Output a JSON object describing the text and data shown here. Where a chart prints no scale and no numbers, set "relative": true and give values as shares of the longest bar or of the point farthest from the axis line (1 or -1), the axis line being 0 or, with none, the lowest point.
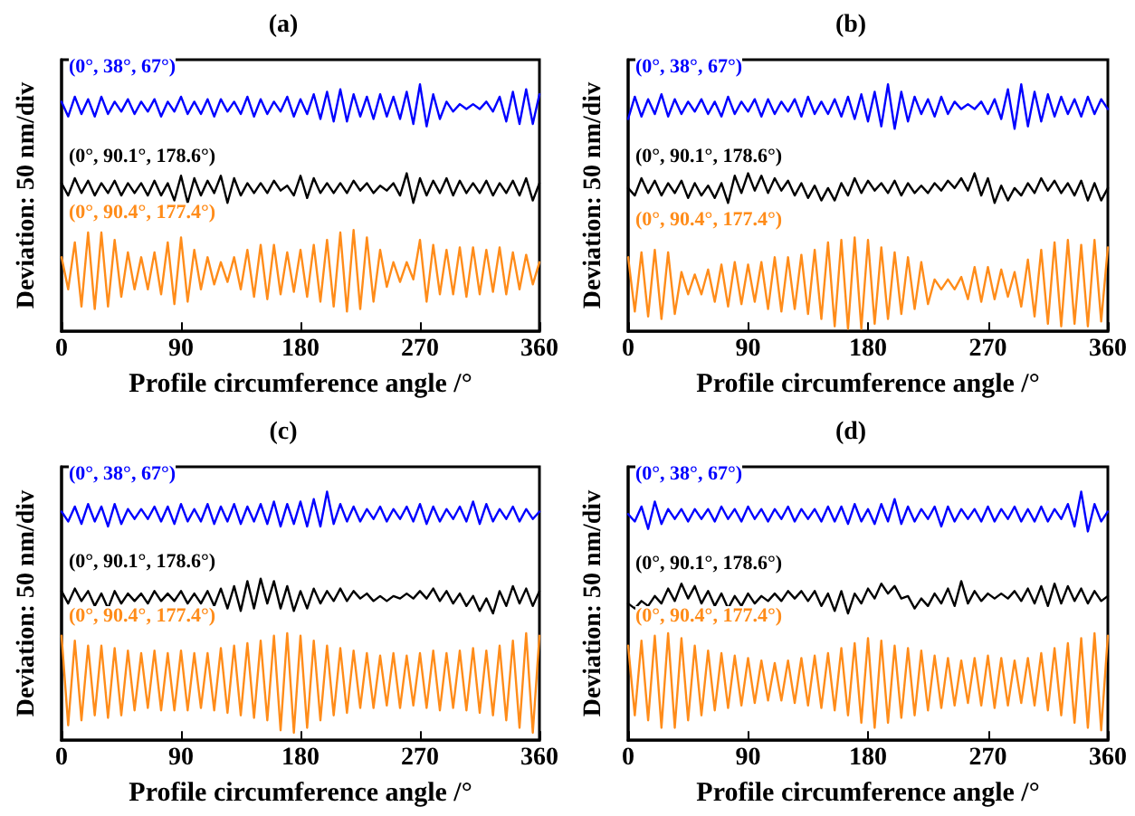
{
  "chart_data": [
    {
      "type": "line",
      "title": "(a)",
      "xlabel": "Profile circumference angle /°",
      "ylabel": "Deviation: 50 nm/div",
      "relative": true,
      "tick_labels": "x",
      "grid": false,
      "marker": "none",
      "line_style": "solid",
      "xlim": [
        0,
        360
      ],
      "xticks": [
        0,
        90,
        180,
        270,
        360
      ],
      "x": [
        0,
        5,
        10,
        15,
        20,
        25,
        30,
        35,
        40,
        45,
        50,
        55,
        60,
        65,
        70,
        75,
        80,
        85,
        90,
        95,
        100,
        105,
        110,
        115,
        120,
        125,
        130,
        135,
        140,
        145,
        150,
        155,
        160,
        165,
        170,
        175,
        180,
        185,
        190,
        195,
        200,
        205,
        210,
        215,
        220,
        225,
        230,
        235,
        240,
        245,
        250,
        255,
        260,
        265,
        270,
        275,
        280,
        285,
        290,
        295,
        300,
        305,
        310,
        315,
        320,
        325,
        330,
        335,
        340,
        345,
        350,
        355,
        360
      ],
      "series": [
        {
          "name": "(0°, 38°, 67°)",
          "color": "#0000ff",
          "values": [
            0.93,
            0.87,
            0.95,
            0.88,
            0.94,
            0.87,
            0.95,
            0.88,
            0.93,
            0.89,
            0.94,
            0.88,
            0.93,
            0.89,
            0.94,
            0.87,
            0.93,
            0.89,
            0.95,
            0.88,
            0.93,
            0.88,
            0.94,
            0.87,
            0.94,
            0.89,
            0.93,
            0.88,
            0.95,
            0.87,
            0.94,
            0.88,
            0.93,
            0.89,
            0.95,
            0.87,
            0.94,
            0.88,
            0.96,
            0.86,
            0.97,
            0.85,
            0.98,
            0.85,
            0.96,
            0.87,
            0.95,
            0.86,
            0.96,
            0.87,
            0.95,
            0.86,
            0.97,
            0.84,
            1.0,
            0.83,
            0.96,
            0.86,
            0.93,
            0.89,
            0.92,
            0.9,
            0.92,
            0.9,
            0.93,
            0.89,
            0.95,
            0.85,
            0.97,
            0.84,
            0.98,
            0.84,
            0.96
          ]
        },
        {
          "name": "(0°, 90.1°, 178.6°)",
          "color": "#000000",
          "values": [
            0.6,
            0.55,
            0.62,
            0.56,
            0.61,
            0.55,
            0.6,
            0.56,
            0.61,
            0.55,
            0.6,
            0.56,
            0.6,
            0.55,
            0.61,
            0.55,
            0.6,
            0.53,
            0.63,
            0.52,
            0.62,
            0.55,
            0.61,
            0.56,
            0.63,
            0.52,
            0.62,
            0.55,
            0.6,
            0.56,
            0.6,
            0.56,
            0.61,
            0.57,
            0.59,
            0.55,
            0.63,
            0.54,
            0.62,
            0.56,
            0.6,
            0.56,
            0.6,
            0.56,
            0.61,
            0.57,
            0.6,
            0.56,
            0.59,
            0.57,
            0.6,
            0.55,
            0.64,
            0.52,
            0.62,
            0.55,
            0.61,
            0.56,
            0.62,
            0.55,
            0.61,
            0.56,
            0.6,
            0.56,
            0.61,
            0.55,
            0.6,
            0.56,
            0.61,
            0.55,
            0.62,
            0.53,
            0.6
          ]
        },
        {
          "name": "(0°, 90.4°, 177.4°)",
          "color": "#ff8c1a",
          "values": [
            0.3,
            0.17,
            0.36,
            0.1,
            0.4,
            0.09,
            0.4,
            0.1,
            0.37,
            0.14,
            0.32,
            0.17,
            0.3,
            0.17,
            0.32,
            0.15,
            0.36,
            0.11,
            0.38,
            0.12,
            0.33,
            0.17,
            0.3,
            0.19,
            0.28,
            0.2,
            0.3,
            0.17,
            0.33,
            0.14,
            0.35,
            0.13,
            0.35,
            0.15,
            0.32,
            0.16,
            0.33,
            0.14,
            0.35,
            0.12,
            0.37,
            0.1,
            0.4,
            0.08,
            0.41,
            0.09,
            0.38,
            0.12,
            0.33,
            0.18,
            0.28,
            0.2,
            0.28,
            0.21,
            0.37,
            0.12,
            0.35,
            0.15,
            0.33,
            0.15,
            0.34,
            0.14,
            0.34,
            0.15,
            0.33,
            0.16,
            0.34,
            0.15,
            0.32,
            0.17,
            0.31,
            0.19,
            0.28
          ]
        }
      ]
    },
    {
      "type": "line",
      "title": "(b)",
      "xlabel": "Profile circumference angle /°",
      "ylabel": "Deviation: 50 nm/div",
      "relative": true,
      "tick_labels": "x",
      "grid": false,
      "marker": "none",
      "line_style": "solid",
      "xlim": [
        0,
        360
      ],
      "xticks": [
        0,
        90,
        180,
        270,
        360
      ],
      "x": [
        0,
        5,
        10,
        15,
        20,
        25,
        30,
        35,
        40,
        45,
        50,
        55,
        60,
        65,
        70,
        75,
        80,
        85,
        90,
        95,
        100,
        105,
        110,
        115,
        120,
        125,
        130,
        135,
        140,
        145,
        150,
        155,
        160,
        165,
        170,
        175,
        180,
        185,
        190,
        195,
        200,
        205,
        210,
        215,
        220,
        225,
        230,
        235,
        240,
        245,
        250,
        255,
        260,
        265,
        270,
        275,
        280,
        285,
        290,
        295,
        300,
        305,
        310,
        315,
        320,
        325,
        330,
        335,
        340,
        345,
        350,
        355,
        360
      ],
      "series": [
        {
          "name": "(0°, 38°, 67°)",
          "color": "#0000ff",
          "values": [
            0.86,
            0.95,
            0.87,
            0.94,
            0.88,
            0.96,
            0.87,
            0.94,
            0.88,
            0.93,
            0.89,
            0.94,
            0.88,
            0.93,
            0.87,
            0.95,
            0.88,
            0.93,
            0.89,
            0.94,
            0.87,
            0.94,
            0.88,
            0.93,
            0.89,
            0.94,
            0.87,
            0.95,
            0.88,
            0.93,
            0.88,
            0.94,
            0.87,
            0.95,
            0.86,
            0.96,
            0.85,
            0.97,
            0.83,
            1.0,
            0.82,
            0.97,
            0.85,
            0.95,
            0.88,
            0.94,
            0.87,
            0.95,
            0.88,
            0.93,
            0.9,
            0.92,
            0.9,
            0.93,
            0.88,
            0.94,
            0.86,
            0.98,
            0.82,
            1.0,
            0.83,
            0.97,
            0.85,
            0.96,
            0.87,
            0.95,
            0.88,
            0.94,
            0.87,
            0.95,
            0.88,
            0.94,
            0.9
          ]
        },
        {
          "name": "(0°, 90.1°, 178.6°)",
          "color": "#000000",
          "values": [
            0.58,
            0.55,
            0.62,
            0.56,
            0.61,
            0.55,
            0.6,
            0.56,
            0.61,
            0.54,
            0.6,
            0.55,
            0.59,
            0.54,
            0.6,
            0.52,
            0.63,
            0.56,
            0.64,
            0.57,
            0.63,
            0.56,
            0.62,
            0.57,
            0.61,
            0.55,
            0.6,
            0.54,
            0.59,
            0.53,
            0.58,
            0.53,
            0.6,
            0.55,
            0.62,
            0.56,
            0.61,
            0.57,
            0.6,
            0.56,
            0.61,
            0.55,
            0.6,
            0.56,
            0.59,
            0.56,
            0.6,
            0.57,
            0.61,
            0.58,
            0.62,
            0.57,
            0.64,
            0.55,
            0.62,
            0.52,
            0.59,
            0.53,
            0.58,
            0.55,
            0.6,
            0.56,
            0.62,
            0.57,
            0.61,
            0.56,
            0.6,
            0.55,
            0.61,
            0.53,
            0.6,
            0.53,
            0.58
          ]
        },
        {
          "name": "(0°, 90.4°, 177.4°)",
          "color": "#ff8c1a",
          "values": [
            0.3,
            0.08,
            0.32,
            0.06,
            0.33,
            0.05,
            0.32,
            0.07,
            0.24,
            0.15,
            0.23,
            0.15,
            0.25,
            0.12,
            0.27,
            0.1,
            0.28,
            0.11,
            0.27,
            0.12,
            0.28,
            0.09,
            0.3,
            0.08,
            0.3,
            0.09,
            0.31,
            0.07,
            0.33,
            0.05,
            0.36,
            0.02,
            0.37,
            0.01,
            0.38,
            0.01,
            0.37,
            0.03,
            0.34,
            0.05,
            0.32,
            0.07,
            0.3,
            0.09,
            0.28,
            0.11,
            0.21,
            0.17,
            0.21,
            0.17,
            0.22,
            0.13,
            0.26,
            0.12,
            0.26,
            0.13,
            0.25,
            0.14,
            0.24,
            0.1,
            0.29,
            0.06,
            0.33,
            0.03,
            0.36,
            0.02,
            0.37,
            0.03,
            0.35,
            0.02,
            0.37,
            0.04,
            0.34
          ]
        }
      ]
    },
    {
      "type": "line",
      "title": "(c)",
      "xlabel": "Profile circumference angle /°",
      "ylabel": "Deviation: 50 nm/div",
      "relative": true,
      "tick_labels": "x",
      "grid": false,
      "marker": "none",
      "line_style": "solid",
      "xlim": [
        0,
        360
      ],
      "xticks": [
        0,
        90,
        180,
        270,
        360
      ],
      "x": [
        0,
        5,
        10,
        15,
        20,
        25,
        30,
        35,
        40,
        45,
        50,
        55,
        60,
        65,
        70,
        75,
        80,
        85,
        90,
        95,
        100,
        105,
        110,
        115,
        120,
        125,
        130,
        135,
        140,
        145,
        150,
        155,
        160,
        165,
        170,
        175,
        180,
        185,
        190,
        195,
        200,
        205,
        210,
        215,
        220,
        225,
        230,
        235,
        240,
        245,
        250,
        255,
        260,
        265,
        270,
        275,
        280,
        285,
        290,
        295,
        300,
        305,
        310,
        315,
        320,
        325,
        330,
        335,
        340,
        345,
        350,
        355,
        360
      ],
      "series": [
        {
          "name": "(0°, 38°, 67°)",
          "color": "#0000ff",
          "values": [
            0.92,
            0.88,
            0.94,
            0.87,
            0.95,
            0.88,
            0.94,
            0.86,
            0.95,
            0.87,
            0.93,
            0.89,
            0.93,
            0.89,
            0.94,
            0.88,
            0.94,
            0.87,
            0.95,
            0.88,
            0.93,
            0.88,
            0.95,
            0.87,
            0.94,
            0.88,
            0.95,
            0.87,
            0.94,
            0.88,
            0.95,
            0.87,
            0.96,
            0.86,
            0.95,
            0.87,
            0.96,
            0.86,
            0.97,
            0.86,
            1.0,
            0.87,
            0.95,
            0.88,
            0.94,
            0.88,
            0.93,
            0.89,
            0.94,
            0.88,
            0.93,
            0.89,
            0.94,
            0.88,
            0.95,
            0.87,
            0.94,
            0.88,
            0.93,
            0.89,
            0.94,
            0.88,
            0.96,
            0.87,
            0.95,
            0.88,
            0.93,
            0.89,
            0.94,
            0.88,
            0.93,
            0.89,
            0.92
          ]
        },
        {
          "name": "(0°, 90.1°, 178.6°)",
          "color": "#000000",
          "values": [
            0.6,
            0.55,
            0.61,
            0.56,
            0.6,
            0.54,
            0.59,
            0.53,
            0.6,
            0.55,
            0.59,
            0.56,
            0.59,
            0.55,
            0.6,
            0.56,
            0.59,
            0.56,
            0.6,
            0.55,
            0.59,
            0.55,
            0.6,
            0.54,
            0.61,
            0.53,
            0.62,
            0.52,
            0.64,
            0.53,
            0.65,
            0.55,
            0.64,
            0.53,
            0.62,
            0.52,
            0.6,
            0.53,
            0.61,
            0.55,
            0.6,
            0.56,
            0.61,
            0.56,
            0.6,
            0.57,
            0.59,
            0.56,
            0.58,
            0.56,
            0.58,
            0.57,
            0.59,
            0.57,
            0.6,
            0.57,
            0.61,
            0.56,
            0.6,
            0.55,
            0.59,
            0.54,
            0.58,
            0.52,
            0.57,
            0.51,
            0.6,
            0.54,
            0.62,
            0.55,
            0.61,
            0.54,
            0.6
          ]
        },
        {
          "name": "(0°, 90.4°, 177.4°)",
          "color": "#ff8c1a",
          "values": [
            0.42,
            0.06,
            0.4,
            0.08,
            0.38,
            0.1,
            0.38,
            0.09,
            0.37,
            0.1,
            0.36,
            0.12,
            0.35,
            0.13,
            0.36,
            0.12,
            0.35,
            0.12,
            0.36,
            0.12,
            0.35,
            0.13,
            0.35,
            0.12,
            0.37,
            0.11,
            0.38,
            0.1,
            0.39,
            0.09,
            0.4,
            0.08,
            0.42,
            0.04,
            0.43,
            0.03,
            0.42,
            0.05,
            0.4,
            0.08,
            0.38,
            0.1,
            0.37,
            0.11,
            0.36,
            0.13,
            0.35,
            0.13,
            0.34,
            0.14,
            0.35,
            0.13,
            0.34,
            0.14,
            0.35,
            0.13,
            0.36,
            0.12,
            0.35,
            0.13,
            0.36,
            0.12,
            0.37,
            0.11,
            0.36,
            0.1,
            0.38,
            0.08,
            0.4,
            0.05,
            0.43,
            0.03,
            0.42
          ]
        }
      ]
    },
    {
      "type": "line",
      "title": "(d)",
      "xlabel": "Profile circumference angle /°",
      "ylabel": "Deviation: 50 nm/div",
      "relative": true,
      "tick_labels": "x",
      "grid": false,
      "marker": "none",
      "line_style": "solid",
      "xlim": [
        0,
        360
      ],
      "xticks": [
        0,
        90,
        180,
        270,
        360
      ],
      "x": [
        0,
        5,
        10,
        15,
        20,
        25,
        30,
        35,
        40,
        45,
        50,
        55,
        60,
        65,
        70,
        75,
        80,
        85,
        90,
        95,
        100,
        105,
        110,
        115,
        120,
        125,
        130,
        135,
        140,
        145,
        150,
        155,
        160,
        165,
        170,
        175,
        180,
        185,
        190,
        195,
        200,
        205,
        210,
        215,
        220,
        225,
        230,
        235,
        240,
        245,
        250,
        255,
        260,
        265,
        270,
        275,
        280,
        285,
        290,
        295,
        300,
        305,
        310,
        315,
        320,
        325,
        330,
        335,
        340,
        345,
        350,
        355,
        360
      ],
      "series": [
        {
          "name": "(0°, 38°, 67°)",
          "color": "#0000ff",
          "values": [
            0.91,
            0.88,
            0.94,
            0.85,
            0.96,
            0.87,
            0.93,
            0.89,
            0.93,
            0.88,
            0.93,
            0.89,
            0.93,
            0.88,
            0.94,
            0.89,
            0.93,
            0.88,
            0.94,
            0.89,
            0.93,
            0.88,
            0.93,
            0.89,
            0.94,
            0.88,
            0.93,
            0.89,
            0.93,
            0.88,
            0.94,
            0.88,
            0.94,
            0.87,
            0.95,
            0.88,
            0.93,
            0.87,
            0.95,
            0.88,
            0.97,
            0.87,
            0.94,
            0.88,
            0.93,
            0.89,
            0.94,
            0.86,
            0.94,
            0.88,
            0.93,
            0.89,
            0.93,
            0.88,
            0.94,
            0.88,
            0.93,
            0.89,
            0.94,
            0.88,
            0.93,
            0.88,
            0.94,
            0.88,
            0.93,
            0.89,
            0.95,
            0.86,
            1.0,
            0.84,
            0.95,
            0.88,
            0.92
          ]
        },
        {
          "name": "(0°, 90.1°, 178.6°)",
          "color": "#000000",
          "values": [
            0.55,
            0.53,
            0.56,
            0.54,
            0.58,
            0.55,
            0.61,
            0.56,
            0.63,
            0.57,
            0.62,
            0.55,
            0.6,
            0.54,
            0.59,
            0.53,
            0.58,
            0.54,
            0.59,
            0.55,
            0.58,
            0.56,
            0.59,
            0.56,
            0.6,
            0.57,
            0.6,
            0.56,
            0.6,
            0.54,
            0.59,
            0.52,
            0.6,
            0.51,
            0.59,
            0.55,
            0.61,
            0.57,
            0.63,
            0.59,
            0.62,
            0.57,
            0.58,
            0.53,
            0.57,
            0.54,
            0.59,
            0.55,
            0.61,
            0.54,
            0.64,
            0.55,
            0.6,
            0.56,
            0.59,
            0.57,
            0.59,
            0.57,
            0.6,
            0.56,
            0.61,
            0.55,
            0.62,
            0.54,
            0.63,
            0.55,
            0.62,
            0.56,
            0.61,
            0.55,
            0.6,
            0.56,
            0.58
          ]
        },
        {
          "name": "(0°, 90.4°, 177.4°)",
          "color": "#ff8c1a",
          "values": [
            0.38,
            0.1,
            0.4,
            0.08,
            0.42,
            0.05,
            0.43,
            0.05,
            0.41,
            0.08,
            0.38,
            0.1,
            0.36,
            0.12,
            0.35,
            0.13,
            0.34,
            0.14,
            0.33,
            0.15,
            0.32,
            0.16,
            0.31,
            0.16,
            0.32,
            0.15,
            0.33,
            0.14,
            0.34,
            0.13,
            0.35,
            0.12,
            0.37,
            0.1,
            0.39,
            0.07,
            0.41,
            0.05,
            0.4,
            0.07,
            0.38,
            0.09,
            0.37,
            0.1,
            0.36,
            0.12,
            0.34,
            0.13,
            0.33,
            0.14,
            0.32,
            0.15,
            0.33,
            0.14,
            0.34,
            0.13,
            0.33,
            0.14,
            0.32,
            0.15,
            0.33,
            0.14,
            0.35,
            0.12,
            0.37,
            0.1,
            0.39,
            0.07,
            0.41,
            0.05,
            0.43,
            0.04,
            0.42
          ]
        }
      ]
    }
  ]
}
